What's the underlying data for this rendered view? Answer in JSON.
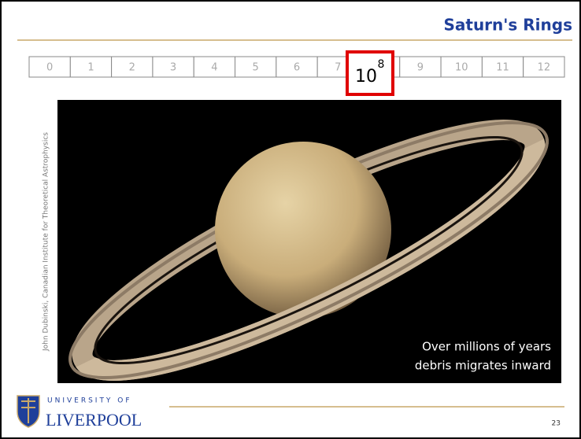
{
  "header": {
    "title": "Saturn's Rings"
  },
  "scale": [
    0,
    1,
    2,
    3,
    4,
    5,
    6,
    7,
    8,
    9,
    10,
    11,
    12
  ],
  "highlight": {
    "base": "10"
  },
  "image": {
    "credit": "John Dubinski, Canadian Institute for Theoretical Astrophysics",
    "caption": [
      "Over millions of years",
      "debris migrates inward"
    ]
  },
  "footer": {
    "university_line1": "UNIVERSITY OF",
    "university_line2": "LIVERPOOL",
    "page_number": "23"
  }
}
